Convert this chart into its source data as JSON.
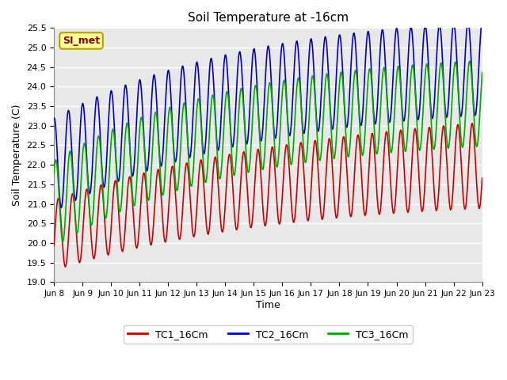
{
  "title": "Soil Temperature at -16cm",
  "xlabel": "Time",
  "ylabel": "Soil Temperature (C)",
  "ylim": [
    19.0,
    25.5
  ],
  "yticks": [
    19.0,
    19.5,
    20.0,
    20.5,
    21.0,
    21.5,
    22.0,
    22.5,
    23.0,
    23.5,
    24.0,
    24.5,
    25.0,
    25.5
  ],
  "xtick_labels": [
    "Jun 8",
    "Jun 9",
    "Jun 10",
    "Jun 11",
    "Jun 12",
    "Jun 13",
    "Jun 14",
    "Jun 15",
    "Jun 16",
    "Jun 17",
    "Jun 18",
    "Jun 19",
    "Jun 20",
    "Jun 21",
    "Jun 22",
    "Jun 23"
  ],
  "plot_bg_color": "#e8e8e8",
  "fig_bg_color": "#ffffff",
  "grid_color": "#ffffff",
  "line_colors": [
    "#cc0000",
    "#0000cc",
    "#00aa00"
  ],
  "legend_labels": [
    "TC1_16Cm",
    "TC2_16Cm",
    "TC3_16Cm"
  ],
  "watermark_text": "SI_met",
  "watermark_fg": "#8b0000",
  "watermark_bg": "#ffff99",
  "watermark_border": "#b8a000"
}
